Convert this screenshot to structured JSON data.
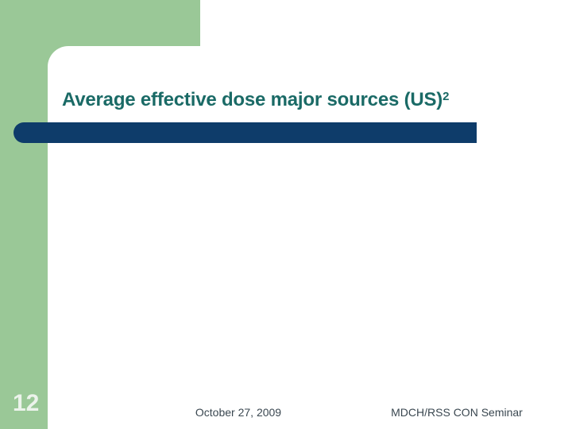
{
  "slide": {
    "title": {
      "text": "Average effective dose major sources (US)",
      "superscript": "2"
    },
    "slide_number": "12",
    "footer": {
      "date": "October 27, 2009",
      "event": "MDCH/RSS CON Seminar"
    },
    "colors": {
      "background": "#ffffff",
      "sidebar_green": "#9ac897",
      "accent_bar_navy": "#0e3c6a",
      "title_teal": "#1a6a66",
      "footer_text": "#3a4750",
      "slide_number": "#ecf3eb"
    }
  }
}
